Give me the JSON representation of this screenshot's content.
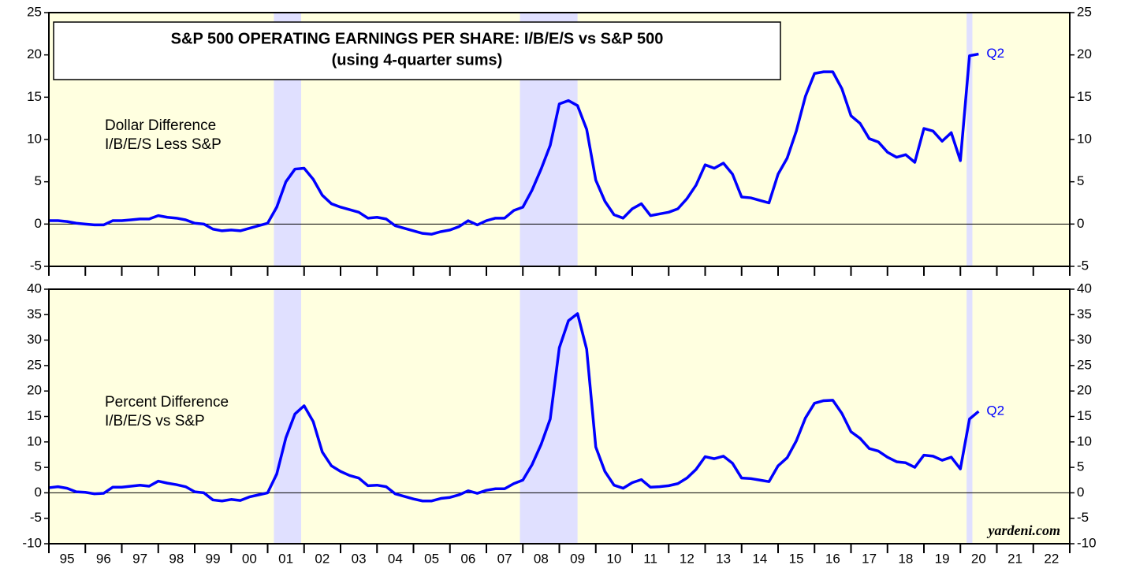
{
  "chart_data": [
    {
      "type": "line",
      "title": "S&P 500 OPERATING EARNINGS PER SHARE: I/B/E/S vs S&P 500",
      "subtitle": "(using 4-quarter sums)",
      "label": [
        "Dollar Difference",
        "I/B/E/S Less S&P"
      ],
      "annotation": "Q2",
      "color": "#0000ff",
      "background": "#ffffe0",
      "recession_color": "#e0e0ff",
      "recessions": [
        [
          2001.17,
          2001.92
        ],
        [
          2007.92,
          2009.5
        ],
        [
          2020.17,
          2020.33
        ]
      ],
      "xlim": [
        1995,
        2023
      ],
      "xticks": [
        1995,
        1996,
        1997,
        1998,
        1999,
        2000,
        2001,
        2002,
        2003,
        2004,
        2005,
        2006,
        2007,
        2008,
        2009,
        2010,
        2011,
        2012,
        2013,
        2014,
        2015,
        2016,
        2017,
        2018,
        2019,
        2020,
        2021,
        2022,
        2023
      ],
      "ylim": [
        -5,
        25
      ],
      "yticks": [
        -5,
        0,
        5,
        10,
        15,
        20,
        25
      ],
      "x": [
        1995,
        1995.25,
        1995.5,
        1995.75,
        1996,
        1996.25,
        1996.5,
        1996.75,
        1997,
        1997.25,
        1997.5,
        1997.75,
        1998,
        1998.25,
        1998.5,
        1998.75,
        1999,
        1999.25,
        1999.5,
        1999.75,
        2000,
        2000.25,
        2000.5,
        2000.75,
        2001,
        2001.25,
        2001.5,
        2001.75,
        2002,
        2002.25,
        2002.5,
        2002.75,
        2003,
        2003.25,
        2003.5,
        2003.75,
        2004,
        2004.25,
        2004.5,
        2004.75,
        2005,
        2005.25,
        2005.5,
        2005.75,
        2006,
        2006.25,
        2006.5,
        2006.75,
        2007,
        2007.25,
        2007.5,
        2007.75,
        2008,
        2008.25,
        2008.5,
        2008.75,
        2009,
        2009.25,
        2009.5,
        2009.75,
        2010,
        2010.25,
        2010.5,
        2010.75,
        2011,
        2011.25,
        2011.5,
        2011.75,
        2012,
        2012.25,
        2012.5,
        2012.75,
        2013,
        2013.25,
        2013.5,
        2013.75,
        2014,
        2014.25,
        2014.5,
        2014.75,
        2015,
        2015.25,
        2015.5,
        2015.75,
        2016,
        2016.25,
        2016.5,
        2016.75,
        2017,
        2017.25,
        2017.5,
        2017.75,
        2018,
        2018.25,
        2018.5,
        2018.75,
        2019,
        2019.25,
        2019.5,
        2019.75,
        2020,
        2020.25,
        2020.5
      ],
      "values": [
        0.4,
        0.4,
        0.3,
        0.1,
        0.0,
        -0.1,
        -0.1,
        0.4,
        0.4,
        0.5,
        0.6,
        0.6,
        1.0,
        0.8,
        0.7,
        0.5,
        0.1,
        0.0,
        -0.6,
        -0.8,
        -0.7,
        -0.8,
        -0.5,
        -0.2,
        0.1,
        2.0,
        5.0,
        6.5,
        6.6,
        5.3,
        3.4,
        2.4,
        2.0,
        1.7,
        1.4,
        0.7,
        0.8,
        0.6,
        -0.2,
        -0.5,
        -0.8,
        -1.1,
        -1.2,
        -0.9,
        -0.7,
        -0.3,
        0.4,
        -0.1,
        0.4,
        0.7,
        0.7,
        1.6,
        2.0,
        4.0,
        6.5,
        9.3,
        14.2,
        14.6,
        14.0,
        11.2,
        5.2,
        2.7,
        1.1,
        0.7,
        1.8,
        2.4,
        1.0,
        1.2,
        1.4,
        1.8,
        3.0,
        4.6,
        7.0,
        6.6,
        7.2,
        5.9,
        3.2,
        3.1,
        2.8,
        2.5,
        5.9,
        7.8,
        11.0,
        15.1,
        17.8,
        18.0,
        18.0,
        16.0,
        12.8,
        11.9,
        10.1,
        9.7,
        8.5,
        7.9,
        8.2,
        7.3,
        11.3,
        11.0,
        9.8,
        10.8,
        7.5,
        19.9,
        20.1
      ]
    },
    {
      "type": "line",
      "label": [
        "Percent Difference",
        "I/B/E/S vs S&P"
      ],
      "annotation": "Q2",
      "source": "yardeni.com",
      "color": "#0000ff",
      "background": "#ffffe0",
      "recession_color": "#e0e0ff",
      "recessions": [
        [
          2001.17,
          2001.92
        ],
        [
          2007.92,
          2009.5
        ],
        [
          2020.17,
          2020.33
        ]
      ],
      "xlim": [
        1995,
        2023
      ],
      "xticks": [
        1995,
        1996,
        1997,
        1998,
        1999,
        2000,
        2001,
        2002,
        2003,
        2004,
        2005,
        2006,
        2007,
        2008,
        2009,
        2010,
        2011,
        2012,
        2013,
        2014,
        2015,
        2016,
        2017,
        2018,
        2019,
        2020,
        2021,
        2022,
        2023
      ],
      "year_labels": [
        "95",
        "96",
        "97",
        "98",
        "99",
        "00",
        "01",
        "02",
        "03",
        "04",
        "05",
        "06",
        "07",
        "08",
        "09",
        "10",
        "11",
        "12",
        "13",
        "14",
        "15",
        "16",
        "17",
        "18",
        "19",
        "20",
        "21",
        "22"
      ],
      "ylim": [
        -10,
        40
      ],
      "yticks": [
        -10,
        -5,
        0,
        5,
        10,
        15,
        20,
        25,
        30,
        35,
        40
      ],
      "x": [
        1995,
        1995.25,
        1995.5,
        1995.75,
        1996,
        1996.25,
        1996.5,
        1996.75,
        1997,
        1997.25,
        1997.5,
        1997.75,
        1998,
        1998.25,
        1998.5,
        1998.75,
        1999,
        1999.25,
        1999.5,
        1999.75,
        2000,
        2000.25,
        2000.5,
        2000.75,
        2001,
        2001.25,
        2001.5,
        2001.75,
        2002,
        2002.25,
        2002.5,
        2002.75,
        2003,
        2003.25,
        2003.5,
        2003.75,
        2004,
        2004.25,
        2004.5,
        2004.75,
        2005,
        2005.25,
        2005.5,
        2005.75,
        2006,
        2006.25,
        2006.5,
        2006.75,
        2007,
        2007.25,
        2007.5,
        2007.75,
        2008,
        2008.25,
        2008.5,
        2008.75,
        2009,
        2009.25,
        2009.5,
        2009.75,
        2010,
        2010.25,
        2010.5,
        2010.75,
        2011,
        2011.25,
        2011.5,
        2011.75,
        2012,
        2012.25,
        2012.5,
        2012.75,
        2013,
        2013.25,
        2013.5,
        2013.75,
        2014,
        2014.25,
        2014.5,
        2014.75,
        2015,
        2015.25,
        2015.5,
        2015.75,
        2016,
        2016.25,
        2016.5,
        2016.75,
        2017,
        2017.25,
        2017.5,
        2017.75,
        2018,
        2018.25,
        2018.5,
        2018.75,
        2019,
        2019.25,
        2019.5,
        2019.75,
        2020,
        2020.25,
        2020.5
      ],
      "values": [
        1.0,
        1.2,
        0.9,
        0.2,
        0.1,
        -0.2,
        -0.1,
        1.1,
        1.1,
        1.3,
        1.5,
        1.3,
        2.3,
        1.9,
        1.6,
        1.2,
        0.2,
        0.0,
        -1.4,
        -1.6,
        -1.3,
        -1.5,
        -0.8,
        -0.4,
        0.0,
        3.7,
        10.8,
        15.5,
        17.1,
        14.0,
        8.0,
        5.3,
        4.2,
        3.4,
        2.9,
        1.4,
        1.5,
        1.2,
        -0.2,
        -0.7,
        -1.2,
        -1.6,
        -1.6,
        -1.1,
        -0.9,
        -0.4,
        0.4,
        -0.1,
        0.5,
        0.8,
        0.8,
        1.8,
        2.5,
        5.5,
        9.5,
        14.5,
        28.5,
        33.8,
        35.2,
        28.2,
        9.0,
        4.2,
        1.5,
        0.9,
        2.0,
        2.6,
        1.1,
        1.2,
        1.4,
        1.8,
        2.9,
        4.6,
        7.1,
        6.7,
        7.2,
        5.8,
        2.9,
        2.8,
        2.5,
        2.2,
        5.3,
        6.9,
        10.2,
        14.7,
        17.6,
        18.1,
        18.2,
        15.6,
        12.0,
        10.7,
        8.7,
        8.2,
        7.0,
        6.1,
        5.9,
        5.0,
        7.4,
        7.2,
        6.4,
        7.0,
        4.7,
        14.5,
        16.0
      ]
    }
  ]
}
